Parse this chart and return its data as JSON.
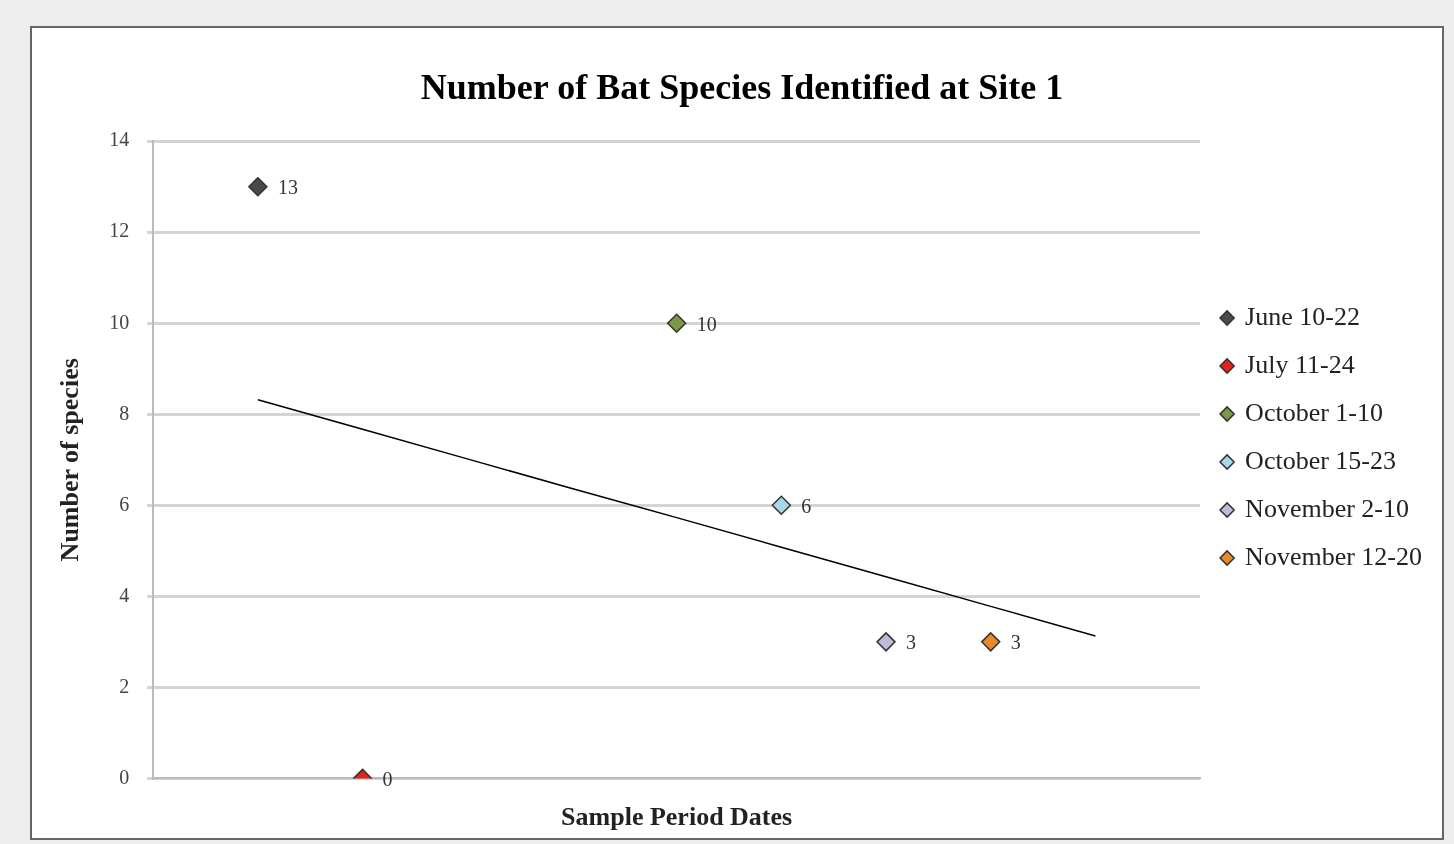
{
  "chart_data": {
    "type": "scatter",
    "title": "Number of Bat Species Identified at Site 1",
    "xlabel": "Sample Period Dates",
    "ylabel": "Number of species",
    "categories": [
      null,
      null,
      null,
      null,
      null,
      null,
      null,
      null,
      null,
      null,
      null
    ],
    "ylim": [
      0,
      14
    ],
    "yticks": [
      0,
      2,
      4,
      6,
      8,
      10,
      12,
      14
    ],
    "grid": "y",
    "legend": "right",
    "marker": "diamond",
    "series": [
      {
        "name": "June 10-22",
        "color": "#4a4a4a",
        "values": [
          null,
          13,
          null,
          null,
          null,
          null,
          null,
          null,
          null,
          null,
          null
        ],
        "value_labels": [
          null,
          "13",
          null,
          null,
          null,
          null,
          null,
          null,
          null,
          null,
          null
        ]
      },
      {
        "name": "July 11-24",
        "color": "#e8221b",
        "values": [
          null,
          null,
          0,
          null,
          null,
          null,
          null,
          null,
          null,
          null,
          null
        ],
        "value_labels": [
          null,
          null,
          "0",
          null,
          null,
          null,
          null,
          null,
          null,
          null,
          null
        ]
      },
      {
        "name": "October 1-10",
        "color": "#7a9a4a",
        "values": [
          null,
          null,
          null,
          null,
          null,
          10,
          null,
          null,
          null,
          null,
          null
        ],
        "value_labels": [
          null,
          null,
          null,
          null,
          null,
          "10",
          null,
          null,
          null,
          null,
          null
        ]
      },
      {
        "name": "October 15-23",
        "color": "#a8d8e8",
        "values": [
          null,
          null,
          null,
          null,
          null,
          null,
          6,
          null,
          null,
          null,
          null
        ],
        "value_labels": [
          null,
          null,
          null,
          null,
          null,
          null,
          "6",
          null,
          null,
          null,
          null
        ]
      },
      {
        "name": "November 2-10",
        "color": "#c0bcd8",
        "values": [
          null,
          null,
          null,
          null,
          null,
          null,
          null,
          3,
          null,
          null,
          null
        ],
        "value_labels": [
          null,
          null,
          null,
          null,
          null,
          null,
          null,
          "3",
          null,
          null,
          null
        ]
      },
      {
        "name": "November 12-20",
        "color": "#e88a2a",
        "values": [
          null,
          null,
          null,
          null,
          null,
          null,
          null,
          null,
          3,
          null,
          null
        ],
        "value_labels": [
          null,
          null,
          null,
          null,
          null,
          null,
          null,
          null,
          "3",
          null,
          null
        ]
      },
      {
        "type": "line",
        "color": "#000000",
        "values": [
          null,
          8.32,
          7.67,
          7.02,
          6.37,
          5.73,
          5.08,
          4.43,
          3.78,
          3.13,
          null
        ],
        "marker": "none"
      }
    ]
  }
}
